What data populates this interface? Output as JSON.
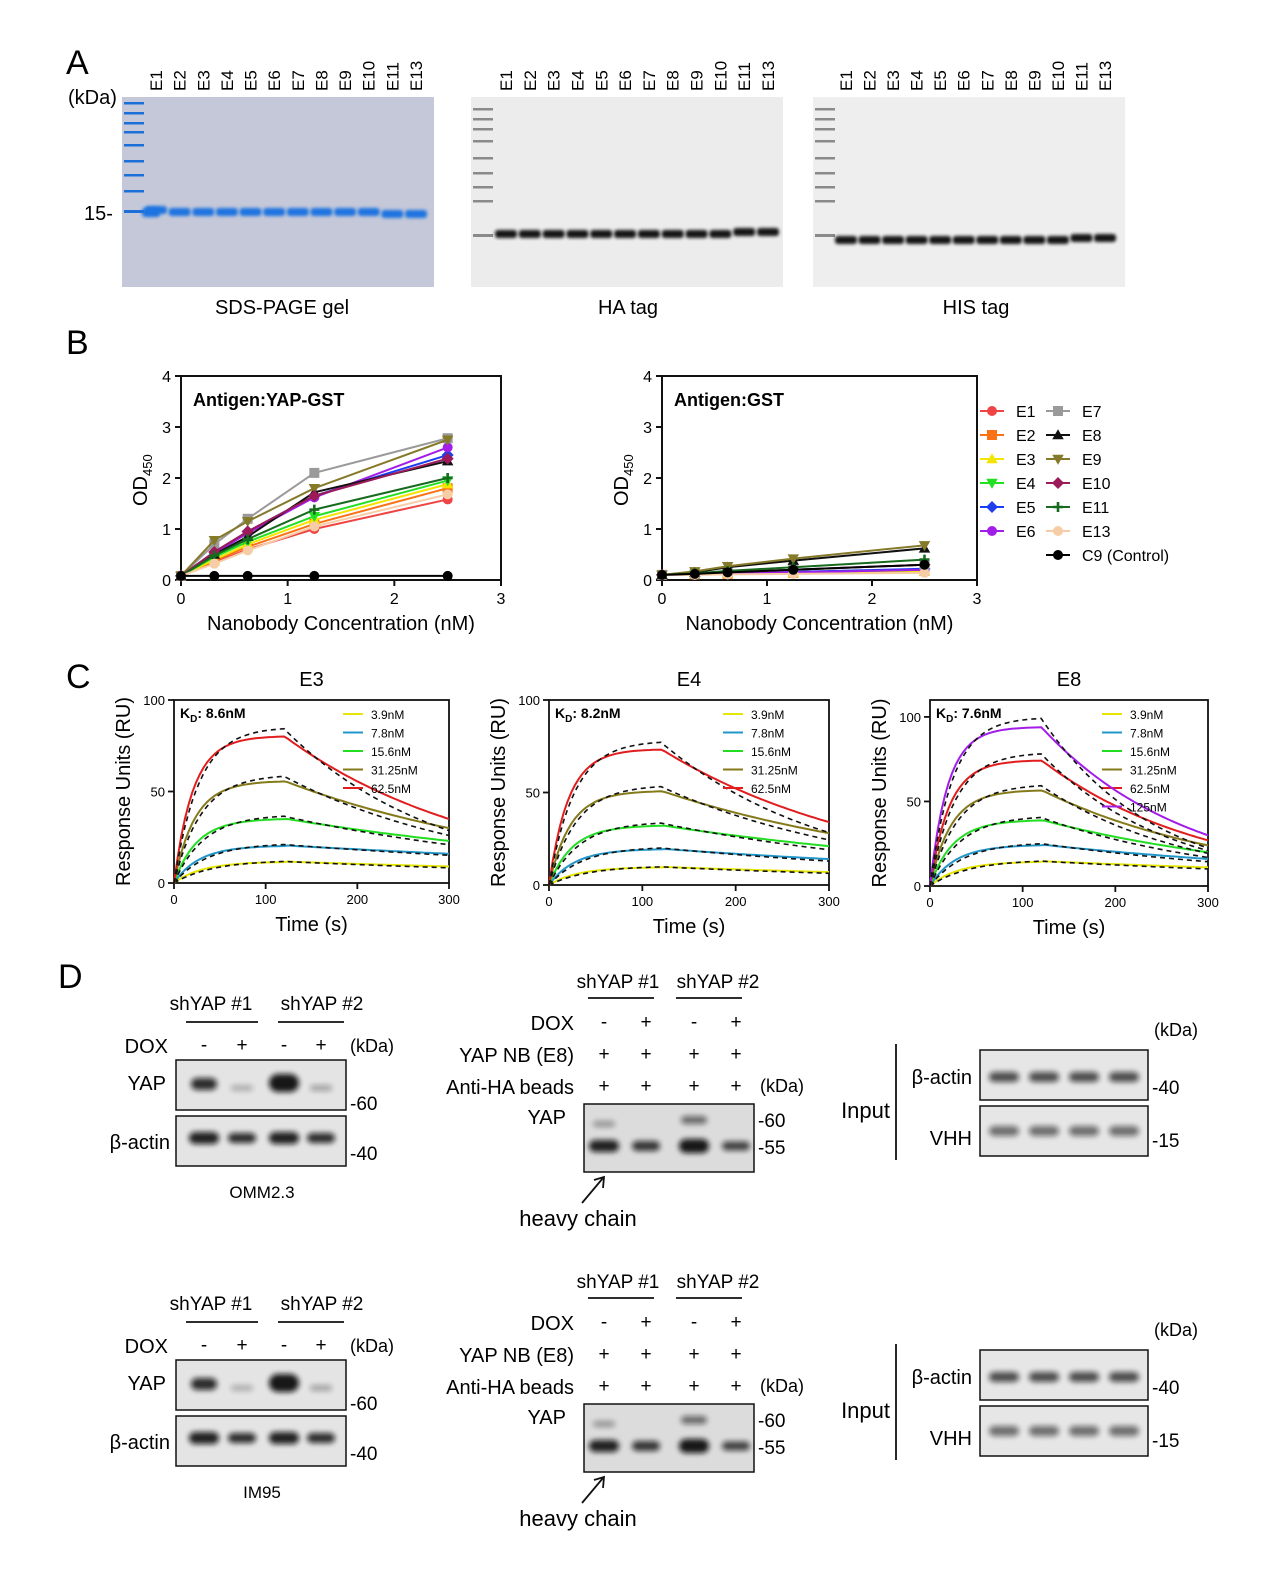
{
  "panelA": {
    "letter": "A",
    "kda": "(kDa)",
    "lanes": [
      "E1",
      "E2",
      "E3",
      "E4",
      "E5",
      "E6",
      "E7",
      "E8",
      "E9",
      "E10",
      "E11",
      "E13"
    ],
    "marker15": "15-",
    "captions": [
      "SDS-PAGE gel",
      "HA tag",
      "HIS tag"
    ]
  },
  "panelB": {
    "letter": "B",
    "legend": [
      {
        "label": "E1",
        "color": "#ef4444",
        "marker": "circle"
      },
      {
        "label": "E2",
        "color": "#f97316",
        "marker": "square"
      },
      {
        "label": "E3",
        "color": "#f5e400",
        "marker": "triangle"
      },
      {
        "label": "E4",
        "color": "#22e022",
        "marker": "invtriangle"
      },
      {
        "label": "E5",
        "color": "#1d3ff0",
        "marker": "diamond"
      },
      {
        "label": "E6",
        "color": "#a21ee8",
        "marker": "circle"
      },
      {
        "label": "E7",
        "color": "#9a9a9a",
        "marker": "square"
      },
      {
        "label": "E8",
        "color": "#111111",
        "marker": "triangle"
      },
      {
        "label": "E9",
        "color": "#857a2a",
        "marker": "invtriangle"
      },
      {
        "label": "E10",
        "color": "#9c1a5a",
        "marker": "diamond"
      },
      {
        "label": "E11",
        "color": "#166b1f",
        "marker": "plus"
      },
      {
        "label": "E13",
        "color": "#f6cda6",
        "marker": "circle"
      },
      {
        "label": "C9 (Control)",
        "color": "#000000",
        "marker": "circle"
      }
    ]
  },
  "chart_data": [
    {
      "type": "line",
      "title": "Antigen:YAP-GST",
      "xlabel": "Nanobody Concentration (nM)",
      "ylabel": "OD",
      "ylabel_sub": "450",
      "xlim": [
        0,
        3
      ],
      "ylim": [
        0,
        4
      ],
      "xticks": [
        "0",
        "1",
        "2",
        "3"
      ],
      "yticks": [
        "0",
        "1",
        "2",
        "3",
        "4"
      ],
      "x": [
        0,
        0.3125,
        0.625,
        1.25,
        2.5
      ],
      "series": [
        {
          "name": "E1",
          "values": [
            0.08,
            0.35,
            0.6,
            1.0,
            1.58
          ]
        },
        {
          "name": "E2",
          "values": [
            0.08,
            0.38,
            0.65,
            1.1,
            1.8
          ]
        },
        {
          "name": "E3",
          "values": [
            0.08,
            0.4,
            0.7,
            1.18,
            1.88
          ]
        },
        {
          "name": "E4",
          "values": [
            0.08,
            0.45,
            0.75,
            1.25,
            1.95
          ]
        },
        {
          "name": "E5",
          "values": [
            0.08,
            0.55,
            0.95,
            1.65,
            2.45
          ]
        },
        {
          "name": "E6",
          "values": [
            0.08,
            0.52,
            0.92,
            1.62,
            2.6
          ]
        },
        {
          "name": "E7",
          "values": [
            0.08,
            0.7,
            1.2,
            2.1,
            2.78
          ]
        },
        {
          "name": "E8",
          "values": [
            0.08,
            0.5,
            0.85,
            1.72,
            2.33
          ]
        },
        {
          "name": "E9",
          "values": [
            0.08,
            0.78,
            1.15,
            1.8,
            2.75
          ]
        },
        {
          "name": "E10",
          "values": [
            0.08,
            0.55,
            0.95,
            1.65,
            2.38
          ]
        },
        {
          "name": "E11",
          "values": [
            0.08,
            0.48,
            0.8,
            1.38,
            2.0
          ]
        },
        {
          "name": "E13",
          "values": [
            0.08,
            0.32,
            0.58,
            1.05,
            1.68
          ]
        },
        {
          "name": "C9 (Control)",
          "values": [
            0.08,
            0.08,
            0.08,
            0.08,
            0.08
          ]
        }
      ]
    },
    {
      "type": "line",
      "title": "Antigen:GST",
      "xlabel": "Nanobody Concentration (nM)",
      "ylabel": "OD",
      "ylabel_sub": "450",
      "xlim": [
        0,
        3
      ],
      "ylim": [
        0,
        4
      ],
      "xticks": [
        "0",
        "1",
        "2",
        "3"
      ],
      "yticks": [
        "0",
        "1",
        "2",
        "3",
        "4"
      ],
      "x": [
        0,
        0.3125,
        0.625,
        1.25,
        2.5
      ],
      "series": [
        {
          "name": "E1",
          "values": [
            0.1,
            0.11,
            0.12,
            0.14,
            0.18
          ]
        },
        {
          "name": "E2",
          "values": [
            0.1,
            0.11,
            0.12,
            0.14,
            0.18
          ]
        },
        {
          "name": "E3",
          "values": [
            0.1,
            0.11,
            0.12,
            0.14,
            0.18
          ]
        },
        {
          "name": "E4",
          "values": [
            0.1,
            0.11,
            0.12,
            0.15,
            0.2
          ]
        },
        {
          "name": "E5",
          "values": [
            0.1,
            0.11,
            0.13,
            0.16,
            0.22
          ]
        },
        {
          "name": "E6",
          "values": [
            0.1,
            0.11,
            0.13,
            0.15,
            0.2
          ]
        },
        {
          "name": "E7",
          "values": [
            0.1,
            0.12,
            0.15,
            0.2,
            0.3
          ]
        },
        {
          "name": "E8",
          "values": [
            0.1,
            0.15,
            0.25,
            0.38,
            0.62
          ]
        },
        {
          "name": "E9",
          "values": [
            0.1,
            0.17,
            0.27,
            0.42,
            0.68
          ]
        },
        {
          "name": "E10",
          "values": [
            0.1,
            0.12,
            0.15,
            0.2,
            0.3
          ]
        },
        {
          "name": "E11",
          "values": [
            0.1,
            0.13,
            0.18,
            0.25,
            0.4
          ]
        },
        {
          "name": "E13",
          "values": [
            0.1,
            0.1,
            0.11,
            0.12,
            0.14
          ]
        },
        {
          "name": "C9 (Control)",
          "values": [
            0.1,
            0.12,
            0.15,
            0.2,
            0.3
          ]
        }
      ]
    },
    {
      "type": "line",
      "title": "E3",
      "kd": "8.6nM",
      "xlabel": "Time (s)",
      "ylabel": "Response Units (RU)",
      "xlim": [
        0,
        300
      ],
      "ylim": [
        0,
        100
      ],
      "xticks": [
        "0",
        "100",
        "200",
        "300"
      ],
      "yticks": [
        "0",
        "50",
        "100"
      ],
      "t_switch": 120,
      "series": [
        {
          "name": "3.9nM",
          "color": "#e6e600",
          "plateau": 12,
          "end": 9
        },
        {
          "name": "7.8nM",
          "color": "#2196c9",
          "plateau": 21,
          "end": 16
        },
        {
          "name": "15.6nM",
          "color": "#22dd22",
          "plateau": 36,
          "end": 23
        },
        {
          "name": "31.25nM",
          "color": "#857a1a",
          "plateau": 57,
          "end": 30
        },
        {
          "name": "62.5nM",
          "color": "#e11d1d",
          "plateau": 82,
          "end": 35
        }
      ]
    },
    {
      "type": "line",
      "title": "E4",
      "kd": "8.2nM",
      "xlabel": "Time (s)",
      "ylabel": "Response Units (RU)",
      "xlim": [
        0,
        300
      ],
      "ylim": [
        0,
        100
      ],
      "xticks": [
        "0",
        "100",
        "200",
        "300"
      ],
      "yticks": [
        "0",
        "50",
        "100"
      ],
      "t_switch": 120,
      "series": [
        {
          "name": "3.9nM",
          "color": "#e6e600",
          "plateau": 10,
          "end": 7
        },
        {
          "name": "7.8nM",
          "color": "#2196c9",
          "plateau": 20,
          "end": 14
        },
        {
          "name": "15.6nM",
          "color": "#22dd22",
          "plateau": 33,
          "end": 21
        },
        {
          "name": "31.25nM",
          "color": "#857a1a",
          "plateau": 52,
          "end": 28
        },
        {
          "name": "62.5nM",
          "color": "#e11d1d",
          "plateau": 75,
          "end": 34
        }
      ]
    },
    {
      "type": "line",
      "title": "E8",
      "kd": "7.6nM",
      "xlabel": "Time (s)",
      "ylabel": "Response Units (RU)",
      "xlim": [
        0,
        300
      ],
      "ylim": [
        0,
        110
      ],
      "xticks": [
        "0",
        "100",
        "200",
        "300"
      ],
      "yticks": [
        "0",
        "50",
        "100"
      ],
      "t_switch": 120,
      "series": [
        {
          "name": "3.9nM",
          "color": "#e6e600",
          "plateau": 15,
          "end": 11
        },
        {
          "name": "7.8nM",
          "color": "#2196c9",
          "plateau": 25,
          "end": 16
        },
        {
          "name": "15.6nM",
          "color": "#22dd22",
          "plateau": 40,
          "end": 20
        },
        {
          "name": "31.25nM",
          "color": "#857a1a",
          "plateau": 58,
          "end": 24
        },
        {
          "name": "62.5nM",
          "color": "#e11d1d",
          "plateau": 76,
          "end": 27
        },
        {
          "name": "125nM",
          "color": "#a21ee8",
          "plateau": 96,
          "end": 30
        }
      ]
    }
  ],
  "panelC": {
    "letter": "C",
    "kd_prefix": "K",
    "kd_sub": "D",
    "kd_colon": ": "
  },
  "panelD": {
    "letter": "D",
    "top": {
      "knock": {
        "groups": [
          "shYAP #1",
          "shYAP #2"
        ],
        "dox_label": "DOX",
        "dox_values": [
          "-",
          "+",
          "-",
          "+"
        ],
        "kda": "(kDa)",
        "rows": [
          "YAP",
          "β-actin"
        ],
        "markers": [
          "-60",
          "-40"
        ],
        "cell_line": "OMM2.3"
      },
      "ip": {
        "groups": [
          "shYAP #1",
          "shYAP #2"
        ],
        "row_labels": [
          "DOX",
          "YAP NB (E8)",
          "Anti-HA beads"
        ],
        "dox_values": [
          "-",
          "+",
          "-",
          "+"
        ],
        "nb_values": [
          "+",
          "+",
          "+",
          "+"
        ],
        "beads_values": [
          "+",
          "+",
          "+",
          "+"
        ],
        "kda": "(kDa)",
        "blot_label": "YAP",
        "markers": [
          "-60",
          "-55"
        ],
        "annotation": "heavy chain"
      },
      "input": {
        "label": "Input",
        "kda": "(kDa)",
        "rows": [
          "β-actin",
          "VHH"
        ],
        "markers": [
          "-40",
          "-15"
        ]
      }
    },
    "bottom": {
      "knock": {
        "groups": [
          "shYAP #1",
          "shYAP #2"
        ],
        "dox_label": "DOX",
        "dox_values": [
          "-",
          "+",
          "-",
          "+"
        ],
        "kda": "(kDa)",
        "rows": [
          "YAP",
          "β-actin"
        ],
        "markers": [
          "-60",
          "-40"
        ],
        "cell_line": "IM95"
      },
      "ip": {
        "groups": [
          "shYAP #1",
          "shYAP #2"
        ],
        "row_labels": [
          "DOX",
          "YAP NB (E8)",
          "Anti-HA beads"
        ],
        "dox_values": [
          "-",
          "+",
          "-",
          "+"
        ],
        "nb_values": [
          "+",
          "+",
          "+",
          "+"
        ],
        "beads_values": [
          "+",
          "+",
          "+",
          "+"
        ],
        "kda": "(kDa)",
        "blot_label": "YAP",
        "markers": [
          "-60",
          "-55"
        ],
        "annotation": "heavy chain"
      },
      "input": {
        "label": "Input",
        "kda": "(kDa)",
        "rows": [
          "β-actin",
          "VHH"
        ],
        "markers": [
          "-40",
          "-15"
        ]
      }
    }
  }
}
